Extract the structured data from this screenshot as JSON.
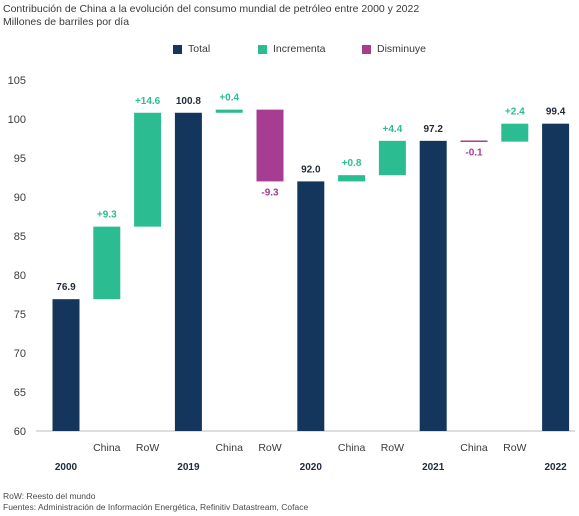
{
  "title": "Contribución de China a la evolución del consumo mundial de petróleo entre 2000 y 2022",
  "subtitle": "Millones de barriles por día",
  "legend": [
    {
      "label": "Total",
      "color": "#14365d"
    },
    {
      "label": "Incrementa",
      "color": "#2bbd91"
    },
    {
      "label": "Disminuye",
      "color": "#a73d93"
    }
  ],
  "footer": {
    "note": "RoW: Reesto del mundo",
    "sources": "Fuentes: Administración de Información Energética, Refinitiv Datastream, Coface"
  },
  "chart_data": {
    "type": "bar",
    "subtype": "waterfall",
    "ylim": [
      60,
      105
    ],
    "yticks": [
      60,
      65,
      70,
      75,
      80,
      85,
      90,
      95,
      100,
      105
    ],
    "grid": false,
    "legend_position": "top",
    "bars": [
      {
        "label": "",
        "group": "2000",
        "kind": "total",
        "start": 60,
        "end": 76.9,
        "text": "76.9"
      },
      {
        "label": "China",
        "group": "",
        "kind": "increase",
        "start": 76.9,
        "end": 86.2,
        "text": "+9.3"
      },
      {
        "label": "RoW",
        "group": "",
        "kind": "increase",
        "start": 86.2,
        "end": 100.8,
        "text": "+14.6"
      },
      {
        "label": "",
        "group": "2019",
        "kind": "total",
        "start": 60,
        "end": 100.8,
        "text": "100.8"
      },
      {
        "label": "China",
        "group": "",
        "kind": "increase",
        "start": 100.8,
        "end": 101.2,
        "text": "+0.4"
      },
      {
        "label": "RoW",
        "group": "",
        "kind": "decrease",
        "start": 101.2,
        "end": 92.0,
        "text": "-9.3"
      },
      {
        "label": "",
        "group": "2020",
        "kind": "total",
        "start": 60,
        "end": 92.0,
        "text": "92.0"
      },
      {
        "label": "China",
        "group": "",
        "kind": "increase",
        "start": 92.0,
        "end": 92.8,
        "text": "+0.8"
      },
      {
        "label": "RoW",
        "group": "",
        "kind": "increase",
        "start": 92.8,
        "end": 97.2,
        "text": "+4.4"
      },
      {
        "label": "",
        "group": "2021",
        "kind": "total",
        "start": 60,
        "end": 97.2,
        "text": "97.2"
      },
      {
        "label": "China",
        "group": "",
        "kind": "decrease",
        "start": 97.2,
        "end": 97.1,
        "text": "-0.1"
      },
      {
        "label": "RoW",
        "group": "",
        "kind": "increase",
        "start": 97.1,
        "end": 99.4,
        "text": "+2.4"
      },
      {
        "label": "",
        "group": "2022",
        "kind": "total",
        "start": 60,
        "end": 99.4,
        "text": "99.4"
      }
    ],
    "colors": {
      "total": "#14365d",
      "increase": "#2bbd91",
      "decrease": "#a73d93"
    }
  }
}
